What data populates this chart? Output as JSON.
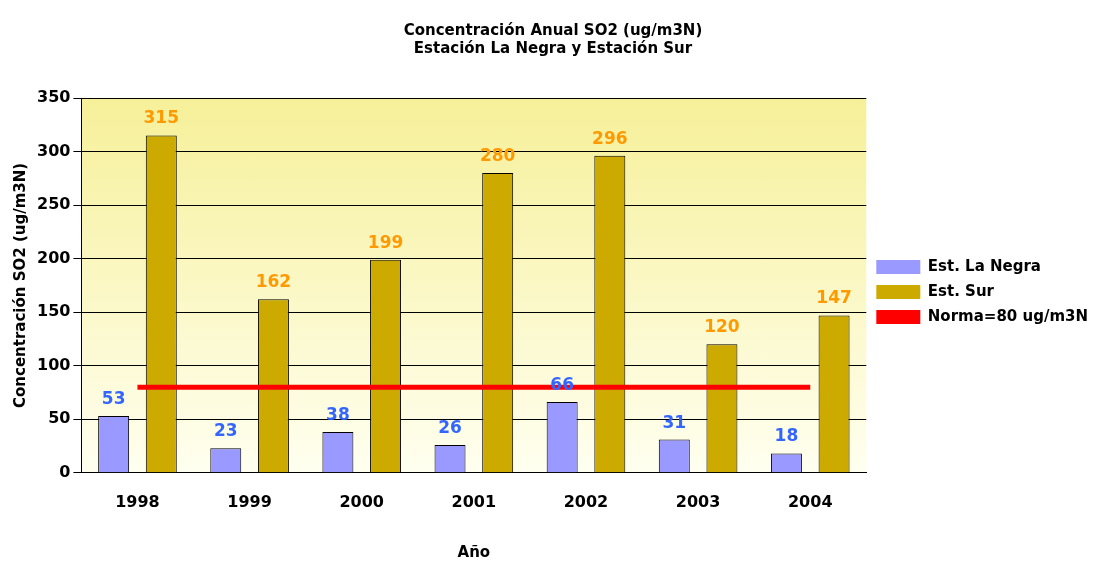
{
  "chart_data": {
    "type": "bar",
    "title": "Concentración Anual SO2 (ug/m3N)",
    "subtitle": "Estación La Negra y Estación Sur",
    "xlabel": "Año",
    "ylabel": "Concentración SO2 (ug/m3N)",
    "categories": [
      "1998",
      "1999",
      "2000",
      "2001",
      "2002",
      "2003",
      "2004"
    ],
    "series": [
      {
        "name": "Est. La Negra",
        "color": "#9999ff",
        "values": [
          53,
          23,
          38,
          26,
          66,
          31,
          18
        ],
        "value_labels": [
          "53",
          "23",
          "38",
          "26",
          "66",
          "31",
          "18"
        ]
      },
      {
        "name": "Est. Sur",
        "color": "#ccaa00",
        "values": [
          315,
          162,
          199,
          280,
          296,
          120,
          147
        ],
        "value_labels": [
          "315",
          "162",
          "199",
          "280",
          "296",
          "120",
          "147"
        ]
      },
      {
        "name": "Norma=80 ug/m3N",
        "type": "line",
        "color": "#ff0000",
        "values": [
          80,
          80,
          80,
          80,
          80,
          80,
          80
        ]
      }
    ],
    "ylim": [
      0,
      350
    ],
    "yticks": [
      0,
      50,
      100,
      150,
      200,
      250,
      300,
      350
    ],
    "grid": "y",
    "legend": "right",
    "marker": "none"
  }
}
